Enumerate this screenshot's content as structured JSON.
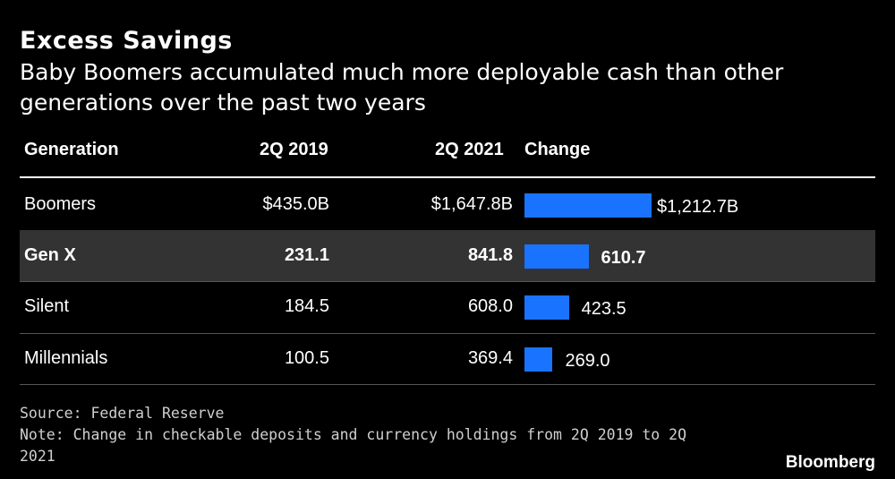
{
  "chart_data": {
    "type": "table",
    "title": "Excess Savings",
    "subtitle": "Baby Boomers accumulated much more deployable cash than other generations over the past two years",
    "columns": [
      "Generation",
      "2Q 2019",
      "2Q 2021",
      "Change"
    ],
    "rows": [
      {
        "generation": "Boomers",
        "q2019": "$435.0B",
        "q2021": "$1,647.8B",
        "change_label": "$1,212.7B",
        "change": 1212.7,
        "highlight": false
      },
      {
        "generation": "Gen X",
        "q2019": "231.1",
        "q2021": "841.8",
        "change_label": "610.7",
        "change": 610.7,
        "highlight": true
      },
      {
        "generation": "Silent",
        "q2019": "184.5",
        "q2021": "608.0",
        "change_label": "423.5",
        "change": 423.5,
        "highlight": false
      },
      {
        "generation": "Millennials",
        "q2019": "100.5",
        "q2021": "369.4",
        "change_label": "269.0",
        "change": 269.0,
        "highlight": false
      }
    ],
    "bar_color": "#1a73ff"
  },
  "footer": {
    "source": "Source: Federal Reserve",
    "note": "Note: Change in checkable deposits and currency holdings from 2Q 2019 to 2Q 2021"
  },
  "brand": "Bloomberg"
}
